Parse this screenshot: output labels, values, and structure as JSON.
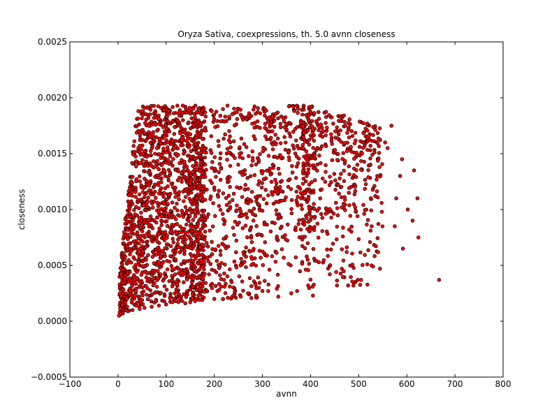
{
  "chart_data": {
    "type": "scatter",
    "title": "Oryza Sativa, coexpressions, th. 5.0 avnn closeness",
    "xlabel": "avnn",
    "ylabel": "closeness",
    "xlim": [
      -100,
      800
    ],
    "ylim": [
      -0.0005,
      0.0025
    ],
    "xticks": [
      -100,
      0,
      100,
      200,
      300,
      400,
      500,
      600,
      700,
      800
    ],
    "xtick_labels": [
      "−100",
      "0",
      "100",
      "200",
      "300",
      "400",
      "500",
      "600",
      "700",
      "800"
    ],
    "yticks": [
      -0.0005,
      0.0,
      0.0005,
      0.001,
      0.0015,
      0.002,
      0.0025
    ],
    "ytick_labels": [
      "−0.0005",
      "0.0000",
      "0.0005",
      "0.0010",
      "0.0015",
      "0.0020",
      "0.0025"
    ],
    "grid": false,
    "legend": "none",
    "marker_fill": "#ff0000",
    "marker_edge": "#000000",
    "background": "#ffffff",
    "points": [
      [
        667,
        0.00037
      ],
      [
        624,
        0.00075
      ],
      [
        622,
        0.0011
      ],
      [
        615,
        0.00135
      ],
      [
        612,
        0.0009
      ],
      [
        602,
        0.001
      ],
      [
        592,
        0.00065
      ],
      [
        590,
        0.00145
      ],
      [
        586,
        0.0013
      ],
      [
        578,
        0.0011
      ],
      [
        575,
        0.00085
      ],
      [
        568,
        0.00175
      ],
      [
        560,
        0.00155
      ],
      [
        555,
        0.0016
      ],
      [
        548,
        0.00098
      ],
      [
        530,
        0.00049
      ],
      [
        527,
        0.00085
      ],
      [
        505,
        0.00037
      ],
      [
        498,
        0.00037
      ],
      [
        489,
        0.00032
      ],
      [
        478,
        0.00032
      ],
      [
        465,
        0.00047
      ],
      [
        455,
        0.00032
      ],
      [
        440,
        0.00042
      ],
      [
        412,
        0.00054
      ],
      [
        405,
        0.00023
      ],
      [
        395,
        0.00032
      ],
      [
        372,
        0.00027
      ],
      [
        360,
        0.00025
      ],
      [
        333,
        0.00022
      ],
      [
        330,
        0.00029
      ],
      [
        312,
        0.00027
      ],
      [
        300,
        0.00027
      ],
      [
        287,
        0.00023
      ],
      [
        270,
        0.00025
      ],
      [
        255,
        0.00022
      ],
      [
        240,
        0.00023
      ],
      [
        228,
        0.00021
      ],
      [
        218,
        0.0002
      ],
      [
        200,
        0.0002
      ],
      [
        175,
        0.00022
      ],
      [
        160,
        0.00018
      ],
      [
        150,
        0.00017
      ],
      [
        140,
        0.00016
      ],
      [
        120,
        0.00018
      ],
      [
        100,
        0.00015
      ],
      [
        85,
        0.00014
      ],
      [
        70,
        0.00013
      ],
      [
        55,
        0.00012
      ],
      [
        45,
        0.00011
      ],
      [
        30,
        0.0001
      ],
      [
        20,
        9e-05
      ],
      [
        10,
        7e-05
      ],
      [
        5,
        6e-05
      ],
      [
        2,
        5e-05
      ]
    ]
  }
}
